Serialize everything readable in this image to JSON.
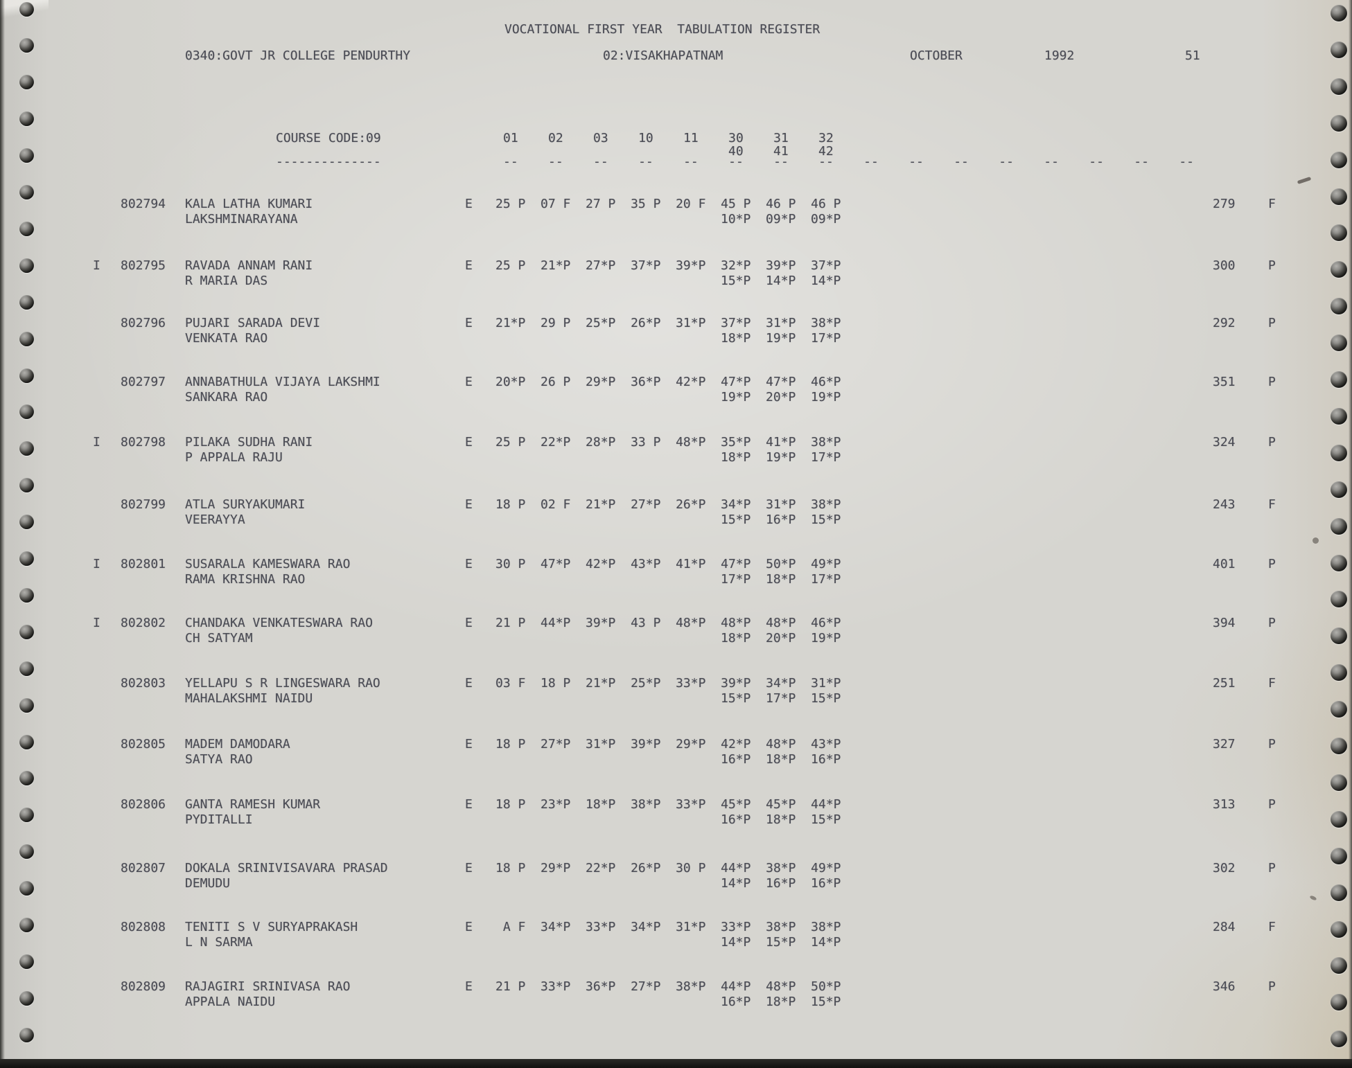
{
  "header": {
    "title": "VOCATIONAL FIRST YEAR  TABULATION REGISTER",
    "college": "0340:GOVT JR COLLEGE PENDURTHY",
    "district": "02:VISAKHAPATNAM",
    "month": "OCTOBER",
    "year": "1992",
    "page_number": "51"
  },
  "course": {
    "label": "COURSE CODE:09",
    "label_underline": "--------------",
    "subject_columns_row1": "01    02    03    10    11    30    31    32",
    "subject_columns_row2": "40    41    42",
    "column_underlines": "--    --    --    --    --    --    --    --    --    --    --    --    --    --    --    --"
  },
  "register": {
    "rows": [
      {
        "flag": "",
        "roll_no": "802794",
        "name": "KALA LATHA KUMARI",
        "parent_name": "LAKSHMINARAYANA",
        "medium": "E",
        "marks_row1": "25 P  07 F  27 P  35 P  20 F  45 P  46 P  46 P",
        "marks_row2": "10*P  09*P  09*P",
        "total": "279",
        "result": "F"
      },
      {
        "flag": "I",
        "roll_no": "802795",
        "name": "RAVADA ANNAM RANI",
        "parent_name": "R MARIA DAS",
        "medium": "E",
        "marks_row1": "25 P  21*P  27*P  37*P  39*P  32*P  39*P  37*P",
        "marks_row2": "15*P  14*P  14*P",
        "total": "300",
        "result": "P"
      },
      {
        "flag": "",
        "roll_no": "802796",
        "name": "PUJARI SARADA DEVI",
        "parent_name": "VENKATA RAO",
        "medium": "E",
        "marks_row1": "21*P  29 P  25*P  26*P  31*P  37*P  31*P  38*P",
        "marks_row2": "18*P  19*P  17*P",
        "total": "292",
        "result": "P"
      },
      {
        "flag": "",
        "roll_no": "802797",
        "name": "ANNABATHULA VIJAYA LAKSHMI",
        "parent_name": "SANKARA RAO",
        "medium": "E",
        "marks_row1": "20*P  26 P  29*P  36*P  42*P  47*P  47*P  46*P",
        "marks_row2": "19*P  20*P  19*P",
        "total": "351",
        "result": "P"
      },
      {
        "flag": "I",
        "roll_no": "802798",
        "name": "PILAKA SUDHA RANI",
        "parent_name": "P APPALA RAJU",
        "medium": "E",
        "marks_row1": "25 P  22*P  28*P  33 P  48*P  35*P  41*P  38*P",
        "marks_row2": "18*P  19*P  17*P",
        "total": "324",
        "result": "P"
      },
      {
        "flag": "",
        "roll_no": "802799",
        "name": "ATLA SURYAKUMARI",
        "parent_name": "VEERAYYA",
        "medium": "E",
        "marks_row1": "18 P  02 F  21*P  27*P  26*P  34*P  31*P  38*P",
        "marks_row2": "15*P  16*P  15*P",
        "total": "243",
        "result": "F"
      },
      {
        "flag": "I",
        "roll_no": "802801",
        "name": "SUSARALA KAMESWARA RAO",
        "parent_name": "RAMA KRISHNA RAO",
        "medium": "E",
        "marks_row1": "30 P  47*P  42*P  43*P  41*P  47*P  50*P  49*P",
        "marks_row2": "17*P  18*P  17*P",
        "total": "401",
        "result": "P"
      },
      {
        "flag": "I",
        "roll_no": "802802",
        "name": "CHANDAKA VENKATESWARA RAO",
        "parent_name": "CH SATYAM",
        "medium": "E",
        "marks_row1": "21 P  44*P  39*P  43 P  48*P  48*P  48*P  46*P",
        "marks_row2": "18*P  20*P  19*P",
        "total": "394",
        "result": "P"
      },
      {
        "flag": "",
        "roll_no": "802803",
        "name": "YELLAPU S R LINGESWARA RAO",
        "parent_name": "MAHALAKSHMI NAIDU",
        "medium": "E",
        "marks_row1": "03 F  18 P  21*P  25*P  33*P  39*P  34*P  31*P",
        "marks_row2": "15*P  17*P  15*P",
        "total": "251",
        "result": "F"
      },
      {
        "flag": "",
        "roll_no": "802805",
        "name": "MADEM DAMODARA",
        "parent_name": "SATYA RAO",
        "medium": "E",
        "marks_row1": "18 P  27*P  31*P  39*P  29*P  42*P  48*P  43*P",
        "marks_row2": "16*P  18*P  16*P",
        "total": "327",
        "result": "P"
      },
      {
        "flag": "",
        "roll_no": "802806",
        "name": "GANTA RAMESH KUMAR",
        "parent_name": "PYDITALLI",
        "medium": "E",
        "marks_row1": "18 P  23*P  18*P  38*P  33*P  45*P  45*P  44*P",
        "marks_row2": "16*P  18*P  15*P",
        "total": "313",
        "result": "P"
      },
      {
        "flag": "",
        "roll_no": "802807",
        "name": "DOKALA SRINIVISAVARA PRASAD",
        "parent_name": "DEMUDU",
        "medium": "E",
        "marks_row1": "18 P  29*P  22*P  26*P  30 P  44*P  38*P  49*P",
        "marks_row2": "14*P  16*P  16*P",
        "total": "302",
        "result": "P"
      },
      {
        "flag": "",
        "roll_no": "802808",
        "name": "TENITI S V SURYAPRAKASH",
        "parent_name": "L N SARMA",
        "medium": "E",
        "marks_row1": " A F  34*P  33*P  34*P  31*P  33*P  38*P  38*P",
        "marks_row2": "14*P  15*P  14*P",
        "total": "284",
        "result": "F"
      },
      {
        "flag": "",
        "roll_no": "802809",
        "name": "RAJAGIRI SRINIVASA RAO",
        "parent_name": "APPALA NAIDU",
        "medium": "E",
        "marks_row1": "21 P  33*P  36*P  27*P  38*P  44*P  48*P  50*P",
        "marks_row2": "16*P  18*P  15*P",
        "total": "346",
        "result": "P"
      }
    ]
  }
}
